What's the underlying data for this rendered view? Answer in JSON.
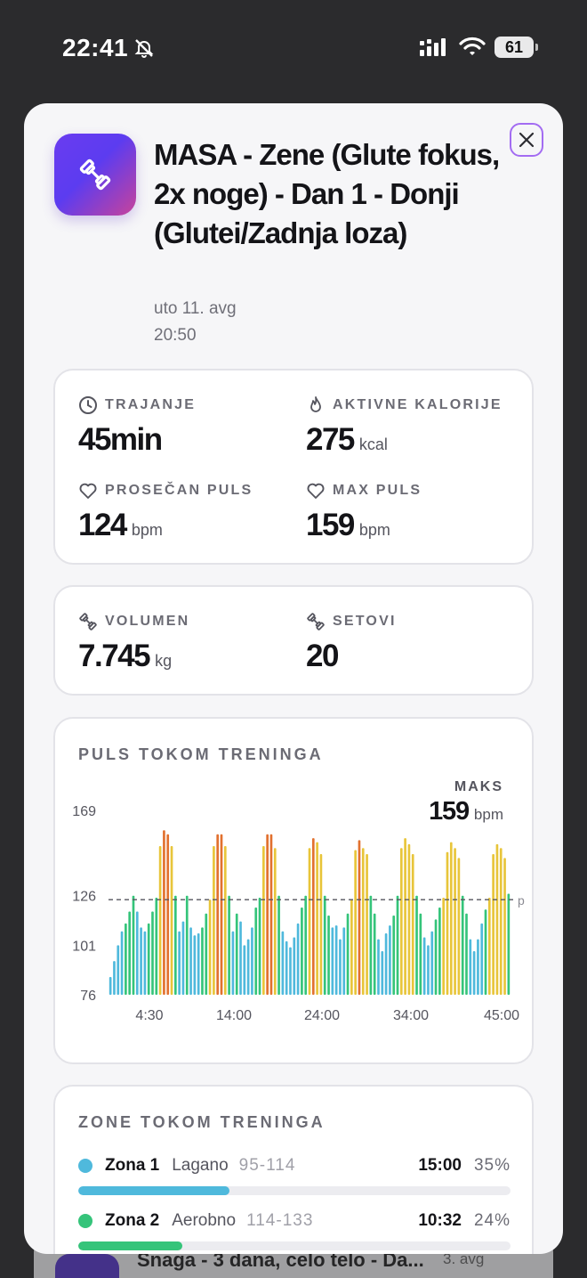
{
  "status_bar": {
    "time": "22:41",
    "battery": "61"
  },
  "background_row": {
    "title": "Snaga - 3 dana, celo telo - Da...",
    "date": "3. avg"
  },
  "workout": {
    "title": "MASA - Zene (Glute fokus, 2x noge) - Dan 1 - Donji (Glutei/Zadnja loza)",
    "date": "uto 11. avg",
    "time": "20:50"
  },
  "stats": {
    "duration": {
      "label": "TRAJANJE",
      "value": "45min"
    },
    "active_calories": {
      "label": "AKTIVNE KALORIJE",
      "value": "275",
      "unit": "kcal"
    },
    "avg_hr": {
      "label": "PROSEČAN PULS",
      "value": "124",
      "unit": "bpm"
    },
    "max_hr": {
      "label": "MAX PULS",
      "value": "159",
      "unit": "bpm"
    }
  },
  "volume": {
    "volume": {
      "label": "VOLUMEN",
      "value": "7.745",
      "unit": "kg"
    },
    "sets": {
      "label": "SETOVI",
      "value": "20"
    }
  },
  "hr_chart": {
    "section_title": "PULS TOKOM TRENINGA",
    "max_label": "MAKS",
    "max_value": "159",
    "max_unit": "bpm",
    "avg_line_label": "p"
  },
  "chart_data": {
    "type": "bar",
    "title": "PULS TOKOM TRENINGA",
    "xlabel": "",
    "ylabel": "",
    "x_tick_labels": [
      "4:30",
      "14:00",
      "24:00",
      "34:00",
      "45:00"
    ],
    "y_tick_labels": [
      "169",
      "126",
      "101",
      "76"
    ],
    "ylim": [
      76,
      169
    ],
    "reference_line": {
      "value": 124,
      "style": "dashed",
      "label": "p"
    },
    "zone_colors": {
      "z1": "#4fb9dc",
      "z2": "#35c47a",
      "z3": "#e8c53a",
      "z4": "#e2712f"
    },
    "values": [
      85,
      93,
      101,
      108,
      112,
      118,
      126,
      118,
      110,
      108,
      112,
      118,
      125,
      151,
      159,
      157,
      151,
      126,
      108,
      113,
      126,
      110,
      106,
      107,
      110,
      117,
      124,
      151,
      157,
      157,
      151,
      126,
      108,
      117,
      113,
      101,
      104,
      110,
      120,
      125,
      151,
      157,
      157,
      150,
      126,
      108,
      103,
      100,
      105,
      112,
      120,
      126,
      150,
      155,
      153,
      147,
      126,
      116,
      110,
      111,
      104,
      110,
      117,
      124,
      149,
      154,
      150,
      147,
      126,
      117,
      104,
      98,
      107,
      111,
      116,
      126,
      150,
      155,
      152,
      147,
      126,
      117,
      105,
      101,
      108,
      114,
      120,
      125,
      148,
      153,
      150,
      145,
      126,
      117,
      104,
      98,
      104,
      112,
      119,
      125,
      147,
      152,
      150,
      145,
      127
    ],
    "zones": [
      "z1",
      "z1",
      "z1",
      "z1",
      "z2",
      "z2",
      "z2",
      "z1",
      "z1",
      "z1",
      "z2",
      "z2",
      "z2",
      "z3",
      "z4",
      "z4",
      "z3",
      "z2",
      "z1",
      "z1",
      "z2",
      "z1",
      "z1",
      "z1",
      "z2",
      "z2",
      "z3",
      "z3",
      "z4",
      "z4",
      "z3",
      "z2",
      "z1",
      "z2",
      "z1",
      "z1",
      "z1",
      "z1",
      "z2",
      "z2",
      "z3",
      "z4",
      "z4",
      "z3",
      "z2",
      "z1",
      "z1",
      "z1",
      "z1",
      "z1",
      "z2",
      "z2",
      "z3",
      "z4",
      "z3",
      "z3",
      "z2",
      "z2",
      "z1",
      "z1",
      "z1",
      "z1",
      "z2",
      "z3",
      "z3",
      "z4",
      "z3",
      "z3",
      "z2",
      "z2",
      "z1",
      "z1",
      "z1",
      "z1",
      "z2",
      "z2",
      "z3",
      "z3",
      "z3",
      "z3",
      "z2",
      "z2",
      "z1",
      "z1",
      "z1",
      "z2",
      "z2",
      "z3",
      "z3",
      "z3",
      "z3",
      "z3",
      "z2",
      "z2",
      "z1",
      "z1",
      "z1",
      "z1",
      "z2",
      "z3",
      "z3",
      "z3",
      "z3",
      "z3",
      "z2"
    ]
  },
  "zones": {
    "section_title": "ZONE TOKOM TRENINGA",
    "items": [
      {
        "name": "Zona 1",
        "desc": "Lagano",
        "range": "95-114",
        "time": "15:00",
        "pct_label": "35%",
        "pct": 0.35,
        "color": "#4fb9dc"
      },
      {
        "name": "Zona 2",
        "desc": "Aerobno",
        "range": "114-133",
        "time": "10:32",
        "pct_label": "24%",
        "pct": 0.24,
        "color": "#35c47a"
      }
    ]
  },
  "colors": {
    "accent_purple": "#a36cf2",
    "app_gradient_start": "#6a3cf0",
    "app_gradient_end": "#c8439a"
  }
}
